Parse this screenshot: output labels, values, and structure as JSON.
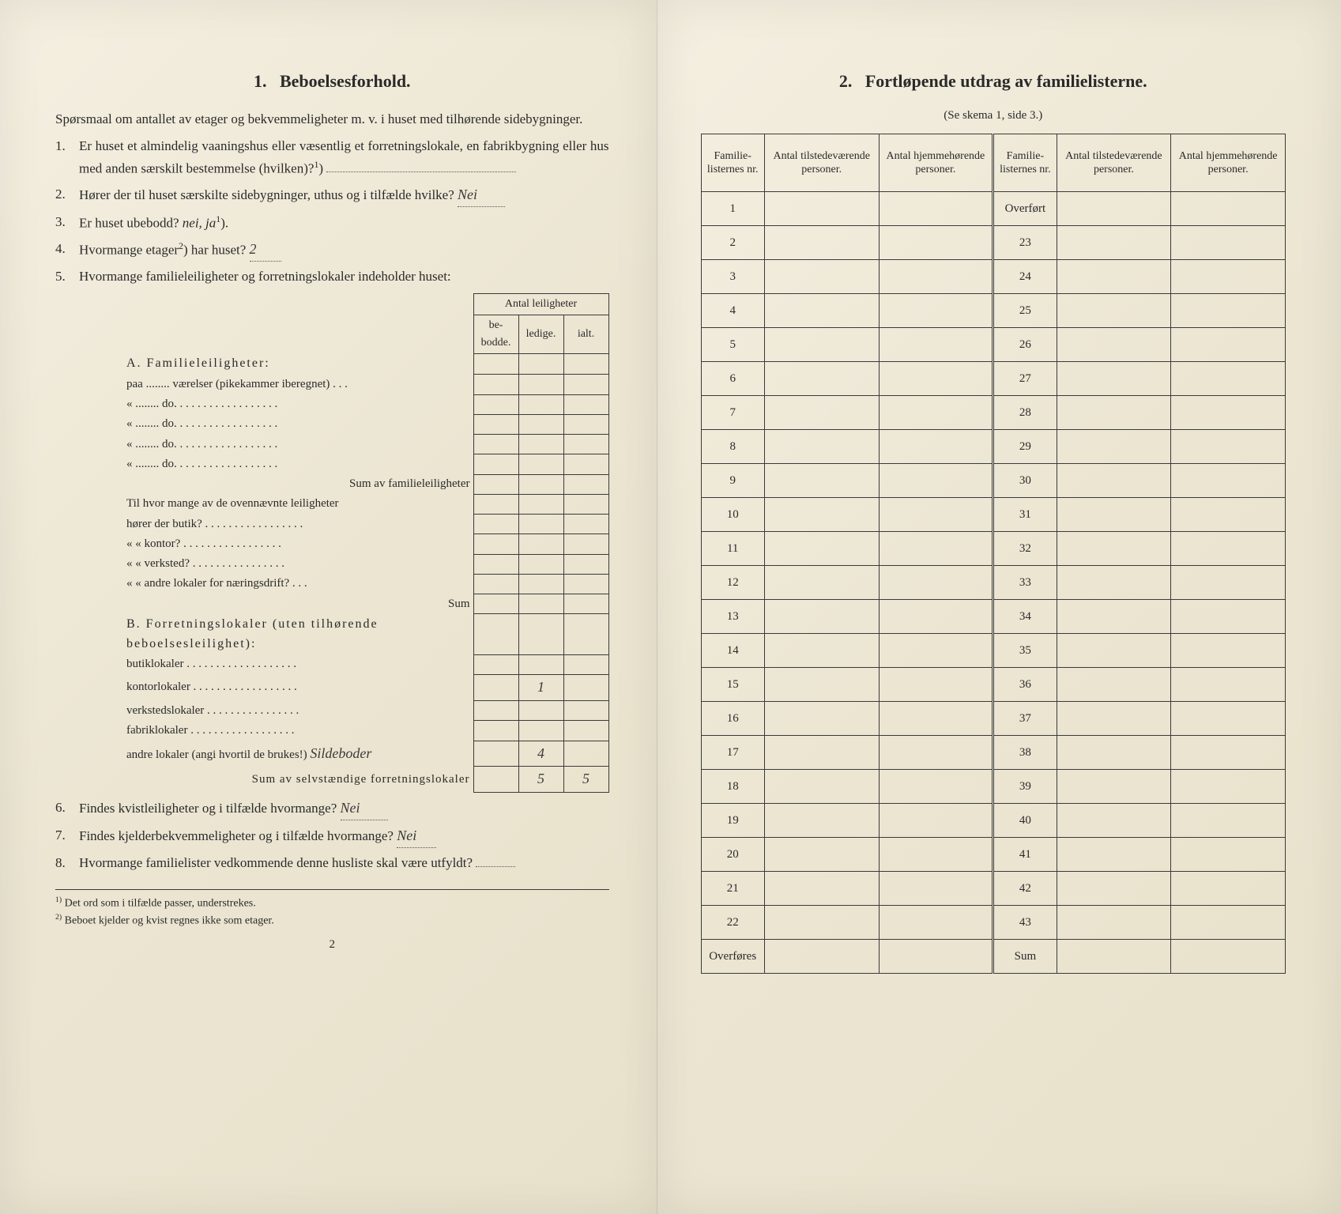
{
  "left": {
    "section_no": "1.",
    "section_title": "Beboelsesforhold.",
    "intro": "Spørsmaal om antallet av etager og bekvemmeligheter m. v. i huset med tilhørende sidebygninger.",
    "q1": "Er huset et almindelig vaaningshus eller væsentlig et forretningslokale, en fabrikbygning eller hus med anden særskilt bestemmelse (hvilken)?",
    "q1_sup": "1",
    "q1_answer": "",
    "q2": "Hører der til huset særskilte sidebygninger, uthus og i tilfælde hvilke?",
    "q2_answer": "Nei",
    "q3_prefix": "Er huset ubebodd?",
    "q3_options": "nei, ja",
    "q3_sup": "1",
    "q4_prefix": "Hvormange etager",
    "q4_sup": "2",
    "q4_suffix": "har huset?",
    "q4_answer": "2",
    "q5": "Hvormange familieleiligheter og forretningslokaler indeholder huset:",
    "leil_header": "Antal leiligheter",
    "leil_cols": [
      "be-\nbodde.",
      "ledige.",
      "ialt."
    ],
    "A_heading": "A. Familieleiligheter:",
    "A_rows": [
      "paa ........ værelser (pikekammer iberegnet) . . .",
      "«   ........      do.     . . . . . . . . . . . . . . . . .",
      "«   ........      do.     . . . . . . . . . . . . . . . . .",
      "«   ........      do.     . . . . . . . . . . . . . . . . .",
      "«   ........      do.     . . . . . . . . . . . . . . . . ."
    ],
    "A_sum": "Sum av familieleiligheter",
    "A_extra_intro": "Til hvor mange av de ovennævnte leiligheter",
    "A_extra_rows": [
      "hører der butik? . . . . . . . . . . . . . . . . .",
      "«     «   kontor? . . . . . . . . . . . . . . . . .",
      "«     «   verksted? . . . . . . . . . . . . . . . .",
      "«     «   andre lokaler for næringsdrift? . . ."
    ],
    "A_extra_sum": "Sum",
    "B_heading": "B. Forretningslokaler (uten tilhørende beboelsesleilighet):",
    "B_rows": [
      {
        "label": "butiklokaler . . . . . . . . . . . . . . . . . . .",
        "v": ""
      },
      {
        "label": "kontorlokaler . . . . . . . . . . . . . . . . . .",
        "v": "1"
      },
      {
        "label": "verkstedslokaler . . . . . . . . . . . . . . . .",
        "v": ""
      },
      {
        "label": "fabriklokaler . . . . . . . . . . . . . . . . . .",
        "v": ""
      },
      {
        "label": "andre lokaler (angi hvortil de brukes!)",
        "v": "4",
        "extra": "Sildeboder"
      }
    ],
    "B_sum_label": "Sum av selvstændige forretningslokaler",
    "B_sum_vals": [
      "",
      "5",
      "5"
    ],
    "q6": "Findes kvistleiligheter og i tilfælde hvormange?",
    "q6_answer": "Nei",
    "q7": "Findes kjelderbekvemmeligheter og i tilfælde hvormange?",
    "q7_answer": "Nei",
    "q8": "Hvormange familielister vedkommende denne husliste skal være utfyldt?",
    "q8_answer": "",
    "footnote1_mark": "1)",
    "footnote1": "Det ord som i tilfælde passer, understrekes.",
    "footnote2_mark": "2)",
    "footnote2": "Beboet kjelder og kvist regnes ikke som etager.",
    "page_no": "2"
  },
  "right": {
    "section_no": "2.",
    "section_title": "Fortløpende utdrag av familielisterne.",
    "subtitle": "(Se skema 1, side 3.)",
    "headers": [
      "Familie-\nlisternes\nnr.",
      "Antal\ntilstedeværende\npersoner.",
      "Antal\nhjemmehørende\npersoner.",
      "Familie-\nlisternes\nnr.",
      "Antal\ntilstedeværende\npersoner.",
      "Antal\nhjemmehørende\npersoner."
    ],
    "left_rows": [
      "1",
      "2",
      "3",
      "4",
      "5",
      "6",
      "7",
      "8",
      "9",
      "10",
      "11",
      "12",
      "13",
      "14",
      "15",
      "16",
      "17",
      "18",
      "19",
      "20",
      "21",
      "22",
      "Overføres"
    ],
    "right_rows": [
      "Overført",
      "23",
      "24",
      "25",
      "26",
      "27",
      "28",
      "29",
      "30",
      "31",
      "32",
      "33",
      "34",
      "35",
      "36",
      "37",
      "38",
      "39",
      "40",
      "41",
      "42",
      "43",
      "Sum"
    ]
  },
  "colors": {
    "paper": "#f0ead8",
    "ink": "#2a2a2a",
    "rule": "#3a3a3a"
  }
}
